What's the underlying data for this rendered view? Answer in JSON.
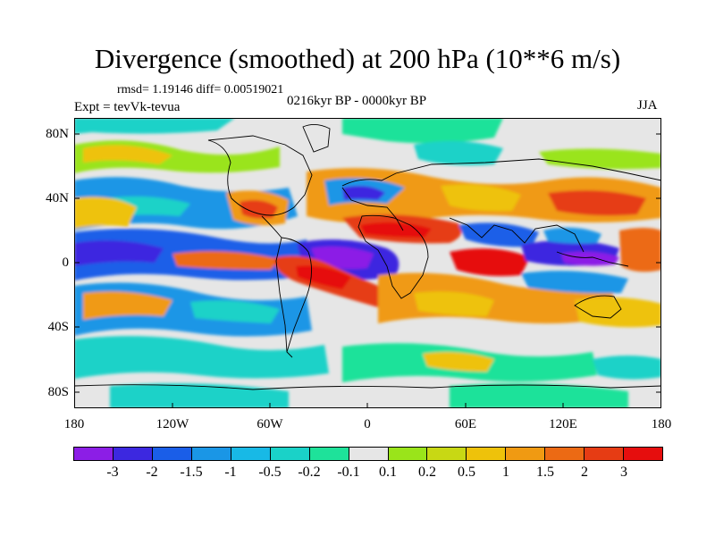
{
  "header": {
    "title": "Divergence (smoothed) at 200 hPa (10**6 m/s)",
    "stats": "rmsd= 1.19146 diff= 0.00519021",
    "expt": "Expt = tevVk-tevua",
    "period": "0216kyr BP - 0000kyr BP",
    "season": "JJA"
  },
  "map": {
    "lat_labels": [
      "80N",
      "40N",
      "0",
      "40S",
      "80S"
    ],
    "lon_labels": [
      "180",
      "120W",
      "60W",
      "0",
      "60E",
      "120E",
      "180"
    ],
    "lon_range": [
      -180,
      180
    ],
    "lat_range": [
      -90,
      90
    ]
  },
  "colorbar": {
    "labels": [
      "-3",
      "-2",
      "-1.5",
      "-1",
      "-0.5",
      "-0.2",
      "-0.1",
      "0.1",
      "0.2",
      "0.5",
      "1",
      "1.5",
      "2",
      "3"
    ],
    "colors": [
      "#8c1ee6",
      "#3c28e0",
      "#1a5ee8",
      "#1a96e6",
      "#18b9e6",
      "#1ad2c8",
      "#1ee29a",
      "#e6e6e6",
      "#9ae41a",
      "#c8d814",
      "#eec20a",
      "#f09a12",
      "#ec6a14",
      "#e63c14",
      "#e60e0e"
    ]
  }
}
